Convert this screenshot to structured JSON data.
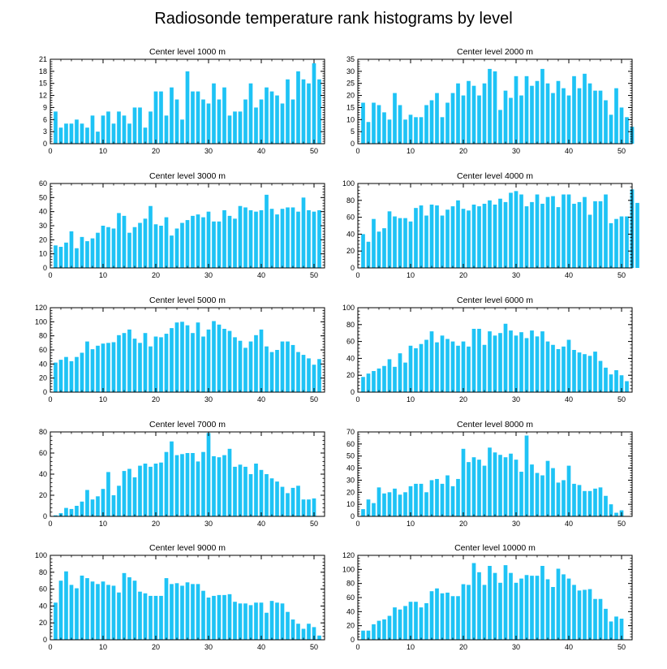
{
  "title": "Radiosonde temperature rank histograms by level",
  "bar_color": "#1ec3f5",
  "chart_data": [
    {
      "type": "bar",
      "title": "Center level 1000 m",
      "xlim": [
        0,
        52
      ],
      "ylim": [
        0,
        21
      ],
      "xticks": [
        0,
        10,
        20,
        30,
        40,
        50
      ],
      "yticks": [
        0,
        3,
        6,
        9,
        12,
        15,
        18,
        21
      ],
      "values": [
        8,
        4,
        5,
        5,
        6,
        5,
        4,
        7,
        3,
        7,
        8,
        5,
        8,
        7,
        5,
        9,
        9,
        4,
        8,
        13,
        13,
        7,
        14,
        11,
        6,
        18,
        13,
        13,
        11,
        10,
        15,
        11,
        14,
        7,
        8,
        8,
        11,
        15,
        9,
        11,
        14,
        13,
        12,
        10,
        16,
        11,
        18,
        16,
        15,
        20,
        16
      ]
    },
    {
      "type": "bar",
      "title": "Center level 2000 m",
      "xlim": [
        0,
        52
      ],
      "ylim": [
        0,
        35
      ],
      "xticks": [
        0,
        10,
        20,
        30,
        40,
        50
      ],
      "yticks": [
        0,
        5,
        10,
        15,
        20,
        25,
        30,
        35
      ],
      "values": [
        17,
        9,
        17,
        16,
        13,
        10,
        21,
        16,
        10,
        12,
        11,
        11,
        16,
        18,
        21,
        11,
        17,
        21,
        25,
        20,
        26,
        24,
        20,
        25,
        31,
        30,
        14,
        22,
        19,
        28,
        20,
        28,
        24,
        26,
        31,
        25,
        21,
        26,
        23,
        20,
        28,
        23,
        29,
        25,
        22,
        22,
        18,
        12,
        23,
        15,
        11,
        7
      ]
    },
    {
      "type": "bar",
      "title": "Center level 3000 m",
      "xlim": [
        0,
        52
      ],
      "ylim": [
        0,
        60
      ],
      "xticks": [
        0,
        10,
        20,
        30,
        40,
        50
      ],
      "yticks": [
        0,
        10,
        20,
        30,
        40,
        50,
        60
      ],
      "values": [
        16,
        15,
        18,
        26,
        14,
        22,
        19,
        21,
        25,
        30,
        29,
        28,
        39,
        37,
        25,
        29,
        32,
        35,
        44,
        31,
        30,
        36,
        23,
        28,
        32,
        34,
        37,
        38,
        36,
        40,
        33,
        33,
        41,
        37,
        35,
        44,
        43,
        41,
        40,
        41,
        52,
        42,
        38,
        42,
        43,
        43,
        40,
        50,
        41,
        40,
        41
      ]
    },
    {
      "type": "bar",
      "title": "Center level 4000 m",
      "xlim": [
        0,
        52
      ],
      "ylim": [
        0,
        100
      ],
      "xticks": [
        0,
        10,
        20,
        30,
        40,
        50
      ],
      "yticks": [
        0,
        20,
        40,
        60,
        80,
        100
      ],
      "values": [
        40,
        31,
        58,
        43,
        47,
        67,
        61,
        59,
        59,
        55,
        71,
        74,
        62,
        75,
        74,
        62,
        69,
        73,
        80,
        70,
        68,
        75,
        73,
        76,
        80,
        75,
        82,
        78,
        89,
        91,
        87,
        73,
        78,
        87,
        76,
        84,
        85,
        72,
        87,
        87,
        76,
        78,
        84,
        63,
        79,
        79,
        87,
        53,
        58,
        61,
        61,
        93,
        77
      ]
    },
    {
      "type": "bar",
      "title": "Center level 5000 m",
      "xlim": [
        0,
        52
      ],
      "ylim": [
        0,
        120
      ],
      "xticks": [
        0,
        10,
        20,
        30,
        40,
        50
      ],
      "yticks": [
        0,
        20,
        40,
        60,
        80,
        100,
        120
      ],
      "values": [
        42,
        46,
        50,
        44,
        50,
        56,
        72,
        61,
        66,
        69,
        70,
        71,
        81,
        84,
        89,
        76,
        70,
        84,
        65,
        79,
        78,
        83,
        91,
        99,
        100,
        95,
        84,
        99,
        79,
        89,
        101,
        96,
        90,
        87,
        78,
        73,
        63,
        72,
        81,
        89,
        65,
        57,
        60,
        72,
        72,
        67,
        57,
        53,
        48,
        39,
        47
      ]
    },
    {
      "type": "bar",
      "title": "Center level 6000 m",
      "xlim": [
        0,
        52
      ],
      "ylim": [
        0,
        100
      ],
      "xticks": [
        0,
        10,
        20,
        30,
        40,
        50
      ],
      "yticks": [
        0,
        20,
        40,
        60,
        80,
        100
      ],
      "values": [
        18,
        22,
        25,
        28,
        31,
        39,
        30,
        46,
        35,
        55,
        52,
        57,
        62,
        72,
        59,
        67,
        63,
        60,
        55,
        60,
        54,
        75,
        75,
        56,
        72,
        67,
        70,
        81,
        73,
        67,
        71,
        64,
        73,
        66,
        72,
        60,
        56,
        51,
        54,
        62,
        50,
        47,
        45,
        43,
        48,
        37,
        29,
        21,
        26,
        20,
        13
      ]
    },
    {
      "type": "bar",
      "title": "Center level 7000 m",
      "xlim": [
        0,
        52
      ],
      "ylim": [
        0,
        80
      ],
      "xticks": [
        0,
        10,
        20,
        30,
        40,
        50
      ],
      "yticks": [
        0,
        20,
        40,
        60,
        80
      ],
      "values": [
        1,
        3,
        8,
        7,
        10,
        14,
        25,
        16,
        19,
        26,
        42,
        20,
        29,
        43,
        45,
        37,
        48,
        50,
        47,
        50,
        51,
        61,
        71,
        58,
        59,
        60,
        60,
        52,
        61,
        79,
        57,
        56,
        58,
        64,
        47,
        49,
        47,
        40,
        50,
        44,
        40,
        36,
        33,
        28,
        22,
        27,
        29,
        16,
        16,
        17
      ]
    },
    {
      "type": "bar",
      "title": "Center level 8000 m",
      "xlim": [
        0,
        52
      ],
      "ylim": [
        0,
        70
      ],
      "xticks": [
        0,
        10,
        20,
        30,
        40,
        50
      ],
      "yticks": [
        0,
        10,
        20,
        30,
        40,
        50,
        60,
        70
      ],
      "values": [
        6,
        14,
        11,
        24,
        19,
        20,
        23,
        18,
        20,
        25,
        27,
        27,
        20,
        30,
        31,
        27,
        34,
        25,
        31,
        56,
        45,
        49,
        47,
        42,
        57,
        53,
        51,
        49,
        52,
        47,
        37,
        67,
        43,
        36,
        34,
        46,
        40,
        28,
        30,
        42,
        27,
        26,
        21,
        21,
        23,
        24,
        17,
        10,
        3,
        5
      ]
    },
    {
      "type": "bar",
      "title": "Center level 9000 m",
      "xlim": [
        0,
        52
      ],
      "ylim": [
        0,
        100
      ],
      "xticks": [
        0,
        10,
        20,
        30,
        40,
        50
      ],
      "yticks": [
        0,
        20,
        40,
        60,
        80,
        100
      ],
      "values": [
        44,
        70,
        81,
        65,
        61,
        76,
        73,
        69,
        66,
        69,
        65,
        64,
        56,
        79,
        74,
        70,
        57,
        55,
        52,
        52,
        52,
        73,
        66,
        67,
        64,
        68,
        66,
        66,
        58,
        50,
        52,
        53,
        53,
        54,
        45,
        43,
        43,
        41,
        44,
        44,
        32,
        46,
        44,
        43,
        33,
        24,
        19,
        13,
        19,
        15,
        5
      ]
    },
    {
      "type": "bar",
      "title": "Center level 10000 m",
      "xlim": [
        0,
        52
      ],
      "ylim": [
        0,
        120
      ],
      "xticks": [
        0,
        10,
        20,
        30,
        40,
        50
      ],
      "yticks": [
        0,
        20,
        40,
        60,
        80,
        100,
        120
      ],
      "values": [
        13,
        13,
        22,
        27,
        29,
        34,
        46,
        43,
        48,
        54,
        54,
        46,
        52,
        69,
        73,
        66,
        67,
        62,
        62,
        79,
        78,
        109,
        96,
        78,
        105,
        95,
        81,
        106,
        95,
        81,
        87,
        92,
        91,
        91,
        105,
        86,
        75,
        101,
        93,
        87,
        78,
        70,
        71,
        72,
        58,
        58,
        44,
        26,
        33,
        30
      ]
    }
  ]
}
